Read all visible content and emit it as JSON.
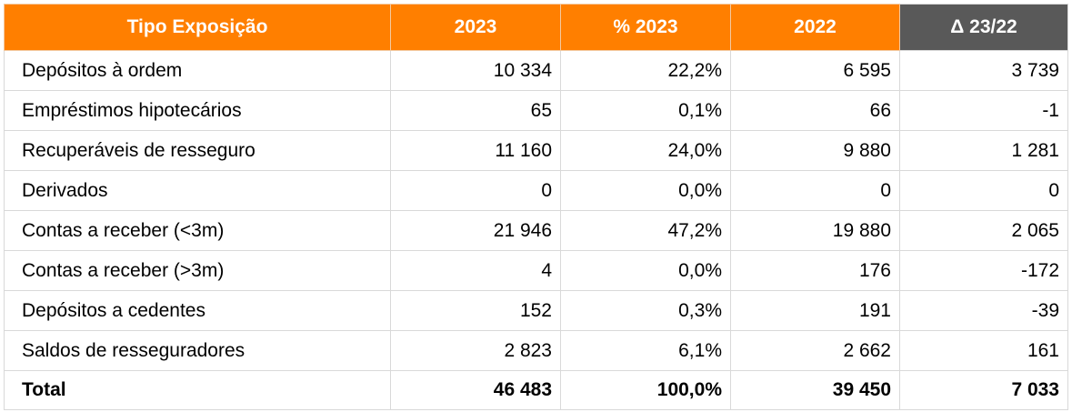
{
  "headers": [
    "Tipo Exposição",
    "2023",
    "% 2023",
    "2022",
    "Δ 23/22"
  ],
  "rows": [
    [
      "Depósitos à ordem",
      "10 334",
      "22,2%",
      "6 595",
      "3 739"
    ],
    [
      "Empréstimos hipotecários",
      "65",
      "0,1%",
      "66",
      "-1"
    ],
    [
      "Recuperáveis de resseguro",
      "11 160",
      "24,0%",
      "9 880",
      "1 281"
    ],
    [
      "Derivados",
      "0",
      "0,0%",
      "0",
      "0"
    ],
    [
      "Contas a receber (<3m)",
      "21 946",
      "47,2%",
      "19 880",
      "2 065"
    ],
    [
      "Contas a receber (>3m)",
      "4",
      "0,0%",
      "176",
      "-172"
    ],
    [
      "Depósitos a cedentes",
      "152",
      "0,3%",
      "191",
      "-39"
    ],
    [
      "Saldos de resseguradores",
      "2 823",
      "6,1%",
      "2 662",
      "161"
    ],
    [
      "Total",
      "46 483",
      "100,0%",
      "39 450",
      "7 033"
    ]
  ],
  "colors": {
    "header_orange": "#ff7f00",
    "header_dark": "#595959",
    "grid": "#d9d9d9"
  }
}
